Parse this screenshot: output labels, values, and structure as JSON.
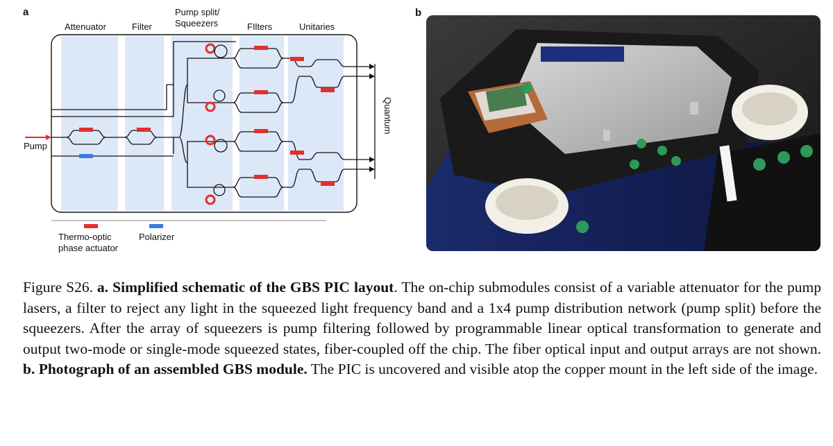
{
  "panel_a": {
    "letter": "a",
    "headers": {
      "attenuator": "Attenuator",
      "filter": "Filter",
      "pump_split_line1": "Pump split/",
      "pump_split_line2": "Squeezers",
      "filters": "FIlters",
      "unitaries": "Unitaries"
    },
    "pump_label": "Pump",
    "quantum_label": "Quantum",
    "legend": {
      "thermo_line1": "Thermo-optic",
      "thermo_line2": "phase actuator",
      "polarizer": "Polarizer"
    },
    "colors": {
      "actuator": "#e03030",
      "polarizer": "#3b7be0",
      "band": "#dce8f7",
      "waveguide": "#111111",
      "pump_arrow": "#e03030"
    }
  },
  "panel_b": {
    "letter": "b",
    "photo_description_icon": "photograph-icon"
  },
  "caption": {
    "fig_label": "Figure S26.",
    "a_label": "a.",
    "a_title": "Simplified schematic of the GBS PIC layout",
    "a_text": ". The on-chip submodules consist of a variable attenuator for the pump lasers, a filter to reject any light in the squeezed light frequency band and a 1x4 pump distribution network (pump split) before the squeezers. After the array of squeezers is pump filtering followed by programmable linear optical transformation to generate and output two-mode or single-mode squeezed states, fiber-coupled off the chip. The fiber optical input and output arrays are not shown.",
    "b_label": "b.",
    "b_title": "Photograph of an assembled GBS module.",
    "b_text": "The PIC is uncovered and visible atop the copper mount in the left side of the image."
  }
}
